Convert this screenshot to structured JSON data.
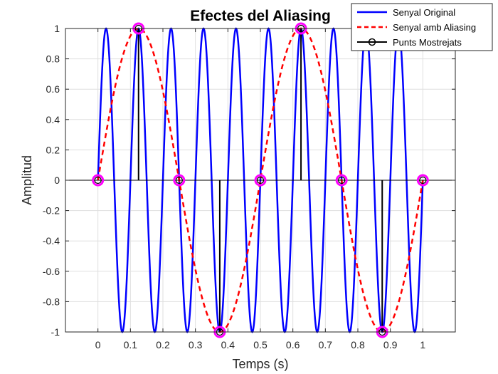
{
  "chart_data": {
    "type": "line",
    "title": "Efectes del Aliasing",
    "xlabel": "Temps (s)",
    "ylabel": "Amplitud",
    "xlim": [
      -0.1,
      1.1
    ],
    "ylim": [
      -1,
      1
    ],
    "xticks": [
      0,
      0.1,
      0.2,
      0.3,
      0.4,
      0.5,
      0.6,
      0.7,
      0.8,
      0.9,
      1
    ],
    "yticks": [
      -1,
      -0.8,
      -0.6,
      -0.4,
      -0.2,
      0,
      0.2,
      0.4,
      0.6,
      0.8,
      1
    ],
    "grid": true,
    "legend_position": "top-right",
    "series": [
      {
        "name": "Senyal Original",
        "style": "solid",
        "color": "#0000ff",
        "function": "sin(2*pi*10*t)",
        "frequency_hz": 10,
        "t_range": [
          0,
          1
        ]
      },
      {
        "name": "Senyal amb Aliasing",
        "style": "dashed",
        "color": "#ff0000",
        "function": "sin(2*pi*2*t)",
        "frequency_hz": 2,
        "t_range": [
          0,
          1
        ]
      },
      {
        "name": "Punts Mostrejats",
        "style": "stem",
        "color": "#000000",
        "marker_edge_color": "#ff00ff",
        "x": [
          0,
          0.125,
          0.25,
          0.375,
          0.5,
          0.625,
          0.75,
          0.875,
          1
        ],
        "y": [
          0,
          1,
          0,
          -1,
          0,
          1,
          0,
          -1,
          0
        ]
      }
    ]
  }
}
